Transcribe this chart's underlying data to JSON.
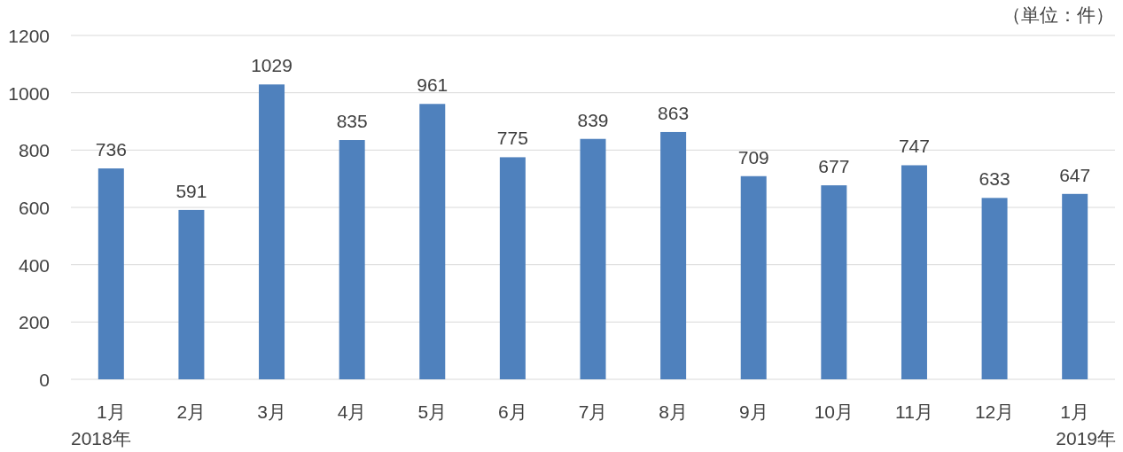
{
  "chart_data": {
    "type": "bar",
    "categories": [
      "1月",
      "2月",
      "3月",
      "4月",
      "5月",
      "6月",
      "7月",
      "8月",
      "9月",
      "10月",
      "11月",
      "12月",
      "1月"
    ],
    "values": [
      736,
      591,
      1029,
      835,
      961,
      775,
      839,
      863,
      709,
      677,
      747,
      633,
      647
    ],
    "color": "#4f81bd",
    "ylim": [
      0,
      1200
    ],
    "yticks": [
      0,
      200,
      400,
      600,
      800,
      1000,
      1200
    ],
    "grid": "y",
    "data_labels": true,
    "annotations": [
      "（単位：件）",
      "2018年",
      "2019年"
    ]
  }
}
